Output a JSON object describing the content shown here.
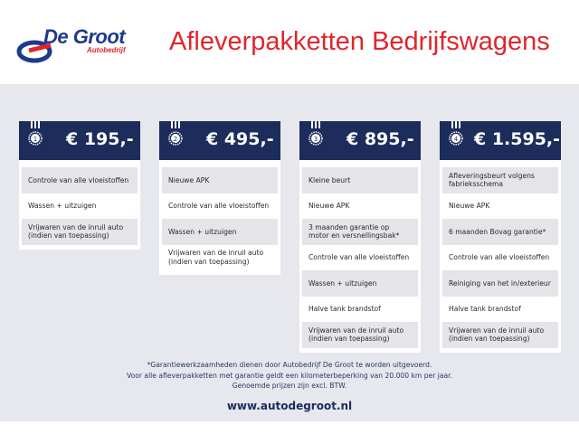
{
  "logo": {
    "name": "De Groot",
    "sub": "Autobedrijf"
  },
  "title": "Afleverpakketten Bedrijfswagens",
  "brand_colors": {
    "navy": "#1c2c5b",
    "red": "#e0262b",
    "background": "#e7e8ee"
  },
  "packages": [
    {
      "number": "1",
      "price": "€ 195,-",
      "items": [
        "Controle van alle vloeistoffen",
        "Wassen + uitzuigen",
        "Vrijwaren van de inruil auto (indien van toepassing)"
      ]
    },
    {
      "number": "2",
      "price": "€ 495,-",
      "items": [
        "Nieuwe APK",
        "Controle van alle vloeistoffen",
        "Wassen + uitzuigen",
        "Vrijwaren van de inruil auto (indien van toepassing)"
      ]
    },
    {
      "number": "3",
      "price": "€ 895,-",
      "items": [
        "Kleine beurt",
        "Nieuwe APK",
        "3 maanden garantie op motor en versnellingsbak*",
        "Controle van alle vloeistoffen",
        "Wassen + uitzuigen",
        "Halve tank brandstof",
        "Vrijwaren van de inruil auto (indien van toepassing)"
      ]
    },
    {
      "number": "4",
      "price": "€ 1.595,-",
      "items": [
        "Afleveringsbeurt volgens fabrieksschema",
        "Nieuwe APK",
        "6 maanden Bovag garantie*",
        "Controle van alle vloeistoffen",
        "Reiniging van het in/exterieur",
        "Halve tank brandstof",
        "Vrijwaren van de inruil auto (indien van toepassing)"
      ]
    }
  ],
  "footnotes": [
    "*Garantiewerkzaamheden dienen door Autobedrijf De Groot te worden uitgevoerd.",
    "Voor alle afleverpakketten met garantie geldt een kilometerbeperking van 20.000 km per jaar.",
    "Genoemde prijzen zijn excl. BTW."
  ],
  "url": "www.autodegroot.nl"
}
